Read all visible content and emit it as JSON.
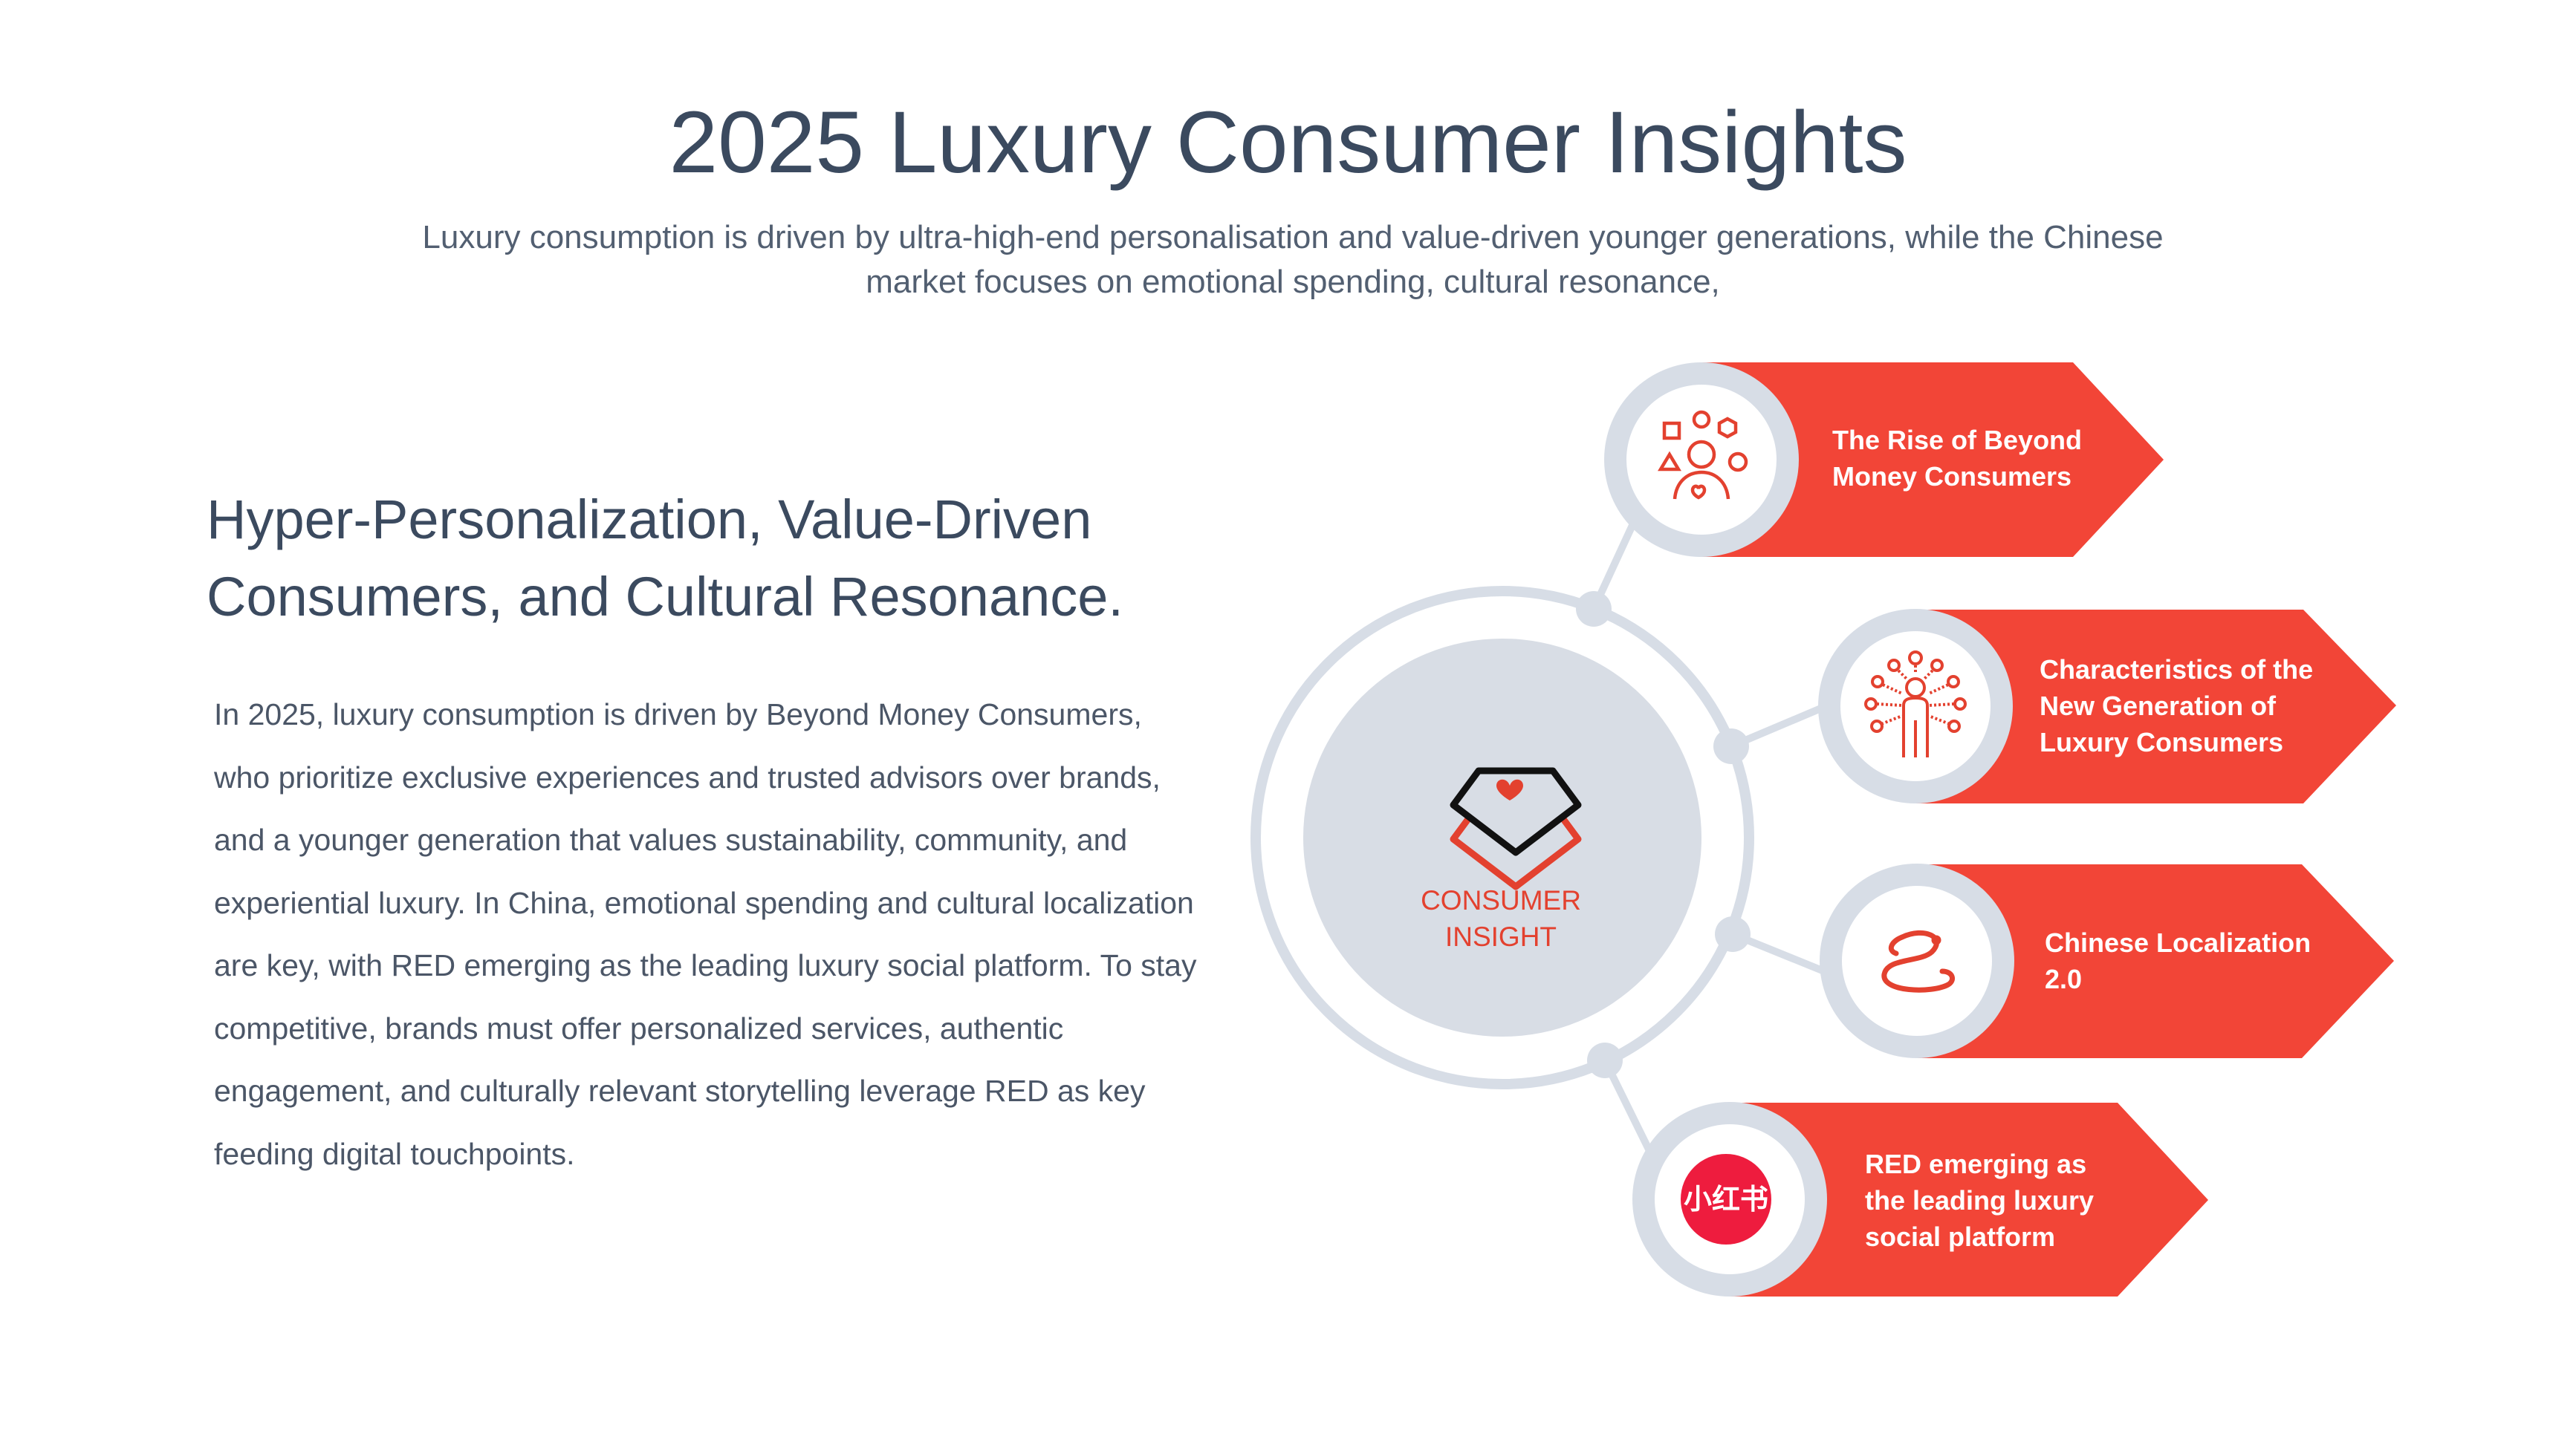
{
  "title": "2025 Luxury Consumer Insights",
  "subtitle": "Luxury consumption is driven by ultra-high-end personalisation and value-driven younger generations, while the Chinese market focuses on emotional spending, cultural resonance,",
  "heading": "Hyper-Personalization, Value-Driven Consumers, and Cultural Resonance.",
  "body": "In 2025, luxury consumption is driven by Beyond Money Consumers, who prioritize exclusive experiences and trusted advisors over brands, and a younger generation that values sustainability, community, and experiential luxury. In China, emotional spending and cultural localization are key, with RED emerging as the leading luxury social platform. To stay competitive, brands must offer personalized services, authentic engagement, and culturally relevant storytelling leverage RED as key feeding digital touchpoints.",
  "center": {
    "label_line1": "CONSUMER",
    "label_line2": "INSIGHT",
    "icon": "diamond-heart-icon"
  },
  "items": [
    {
      "label": "The Rise of Beyond\nMoney Consumers",
      "icon": "people-shapes-icon"
    },
    {
      "label": "Characteristics of the\nNew Generation of\nLuxury Consumers",
      "icon": "person-network-icon"
    },
    {
      "label": "Chinese Localization\n2.0",
      "icon": "snake-icon"
    },
    {
      "label": "RED emerging as\nthe leading luxury\nsocial platform",
      "icon": "xiaohongshu-logo-icon",
      "logo_text": "小红书"
    }
  ],
  "colors": {
    "accent": "#f24537",
    "ring": "#d7dde6",
    "center_fill": "#d8dde5",
    "text": "#3b4a5f",
    "logo_red": "#ee1c3e"
  }
}
